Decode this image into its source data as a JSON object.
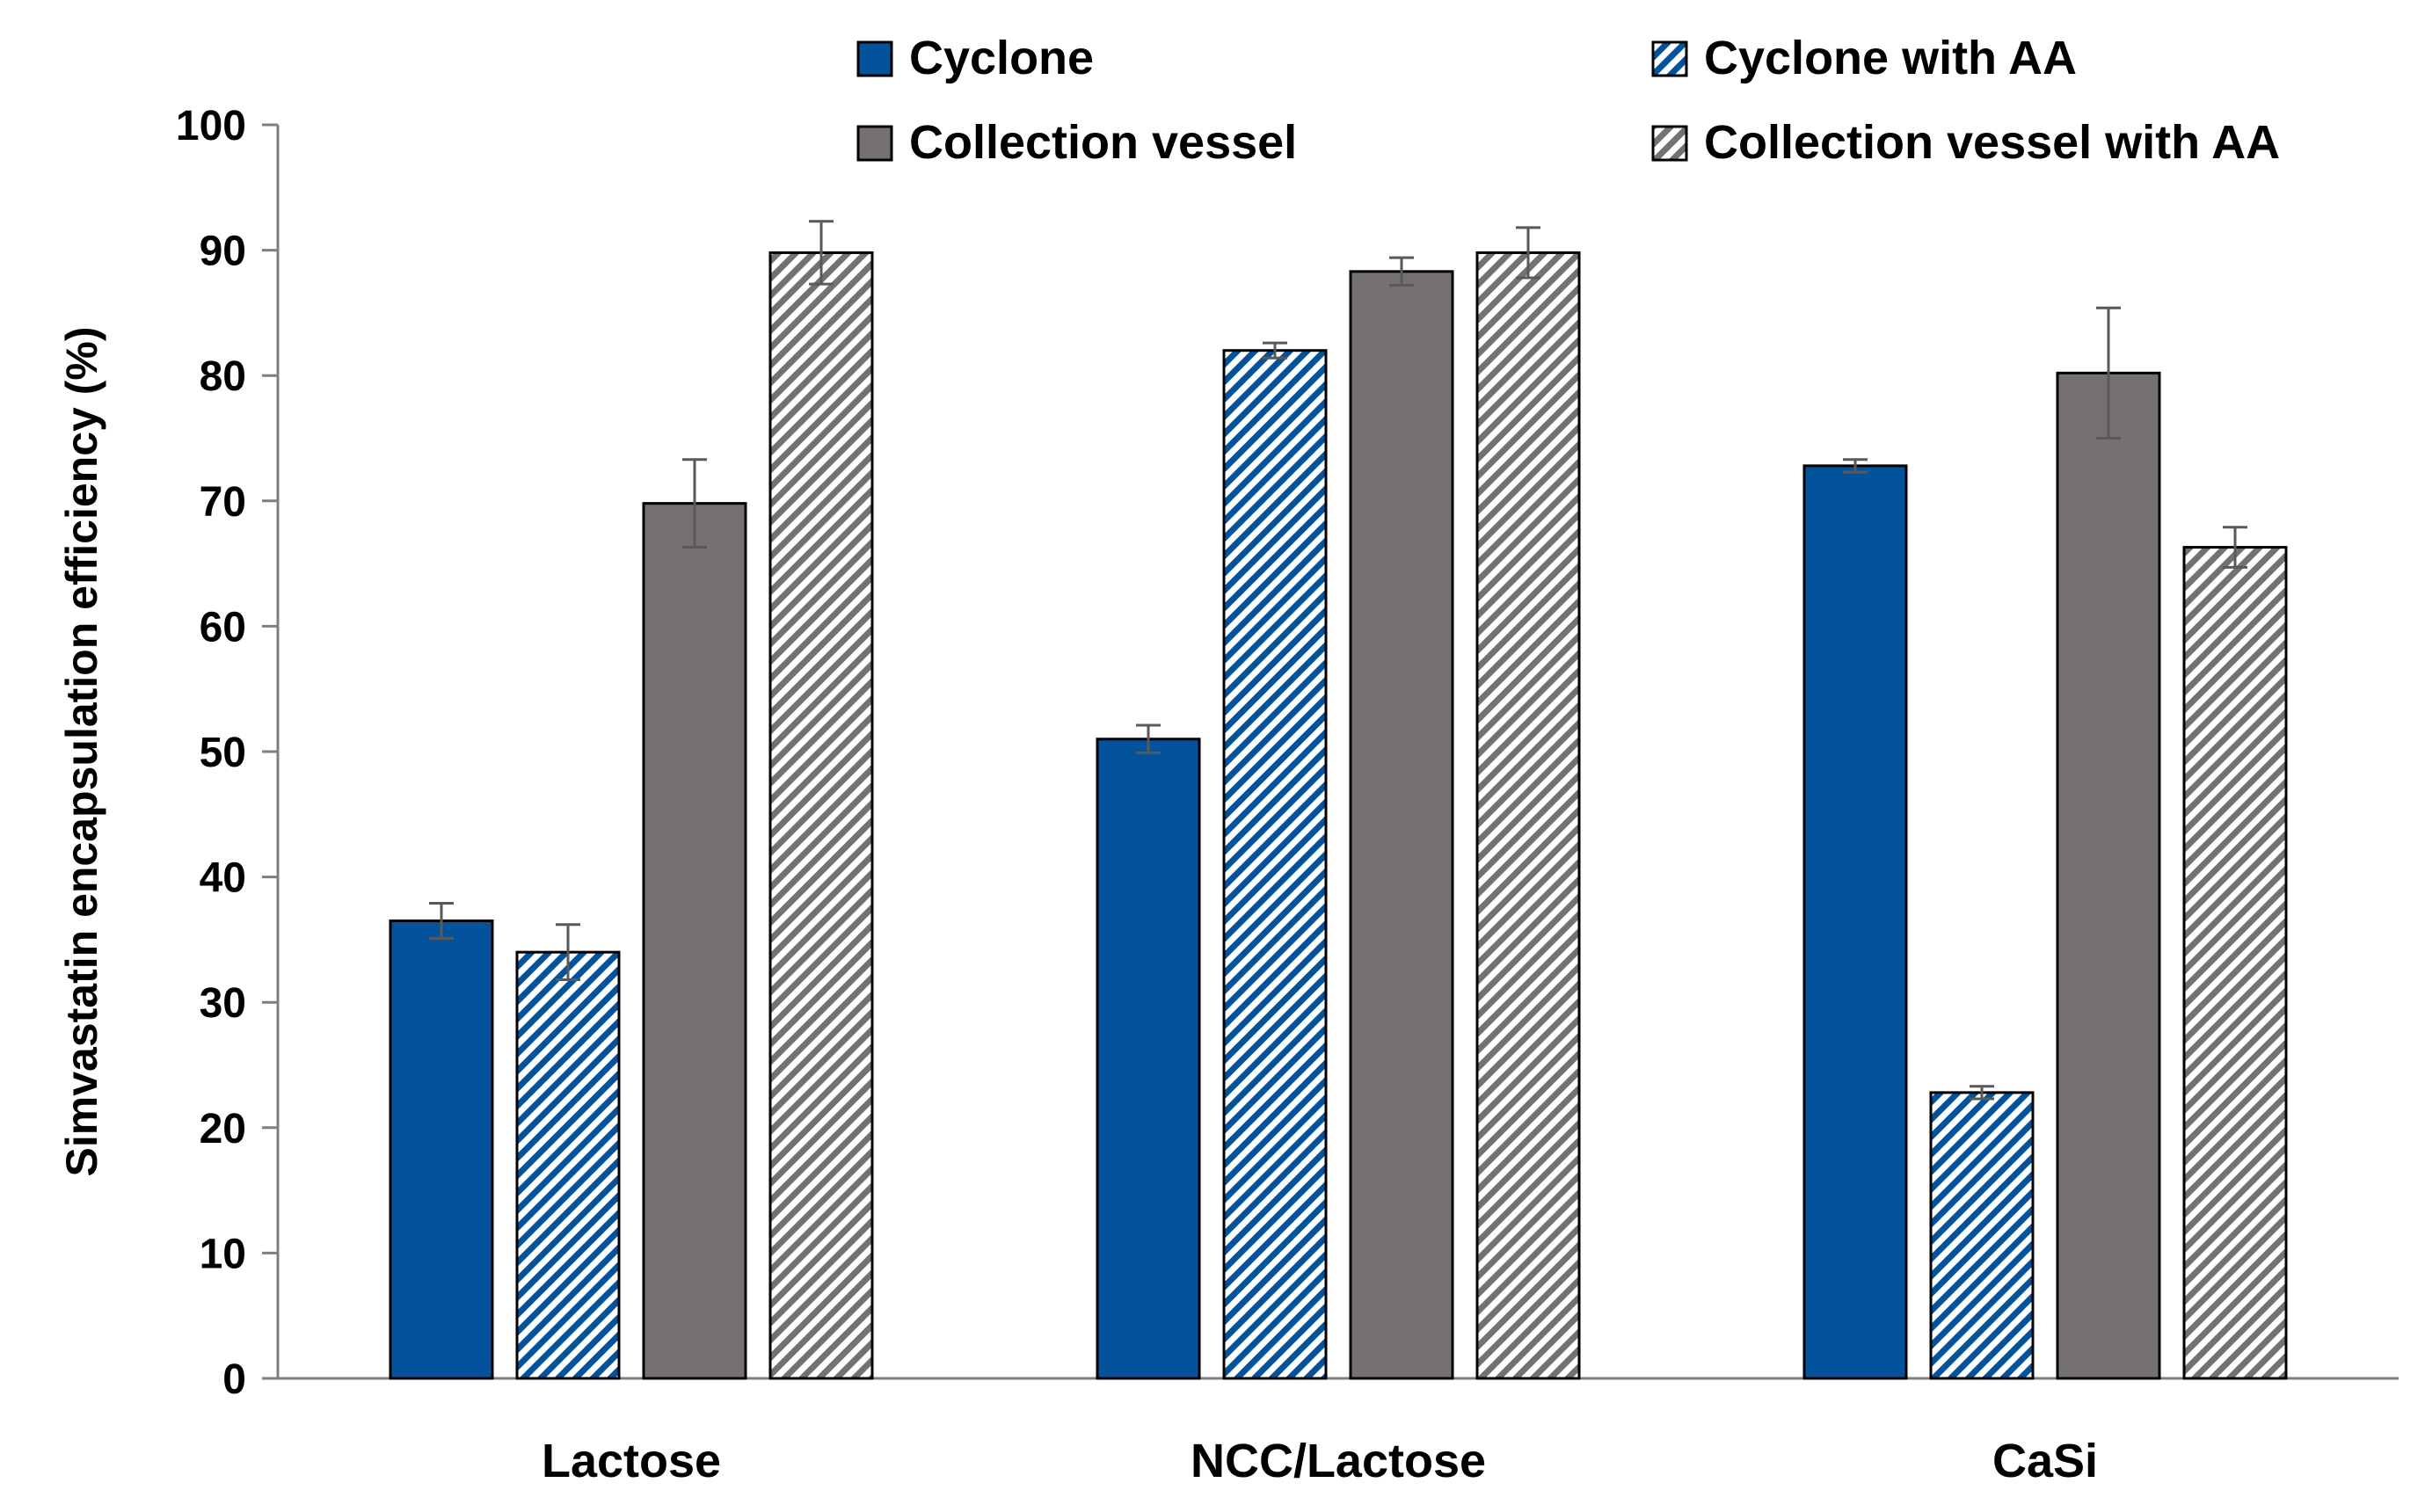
{
  "chart_data": {
    "type": "bar",
    "title": "",
    "xlabel": "",
    "ylabel": "Simvastatin encapsulation efficiency (%)",
    "ylim": [
      0,
      100
    ],
    "yticks": [
      0,
      10,
      20,
      30,
      40,
      50,
      60,
      70,
      80,
      90,
      100
    ],
    "categories": [
      "Lactose",
      "NCC/Lactose",
      "CaSi"
    ],
    "legend_position": "top-right",
    "series": [
      {
        "name": "Cyclone",
        "color": "#03529C",
        "pattern": "solid",
        "values": [
          36.5,
          51.0,
          72.8
        ],
        "errors": [
          1.4,
          1.1,
          0.5
        ]
      },
      {
        "name": "Cyclone with AA",
        "color": "#03529C",
        "pattern": "hatched",
        "values": [
          34.0,
          82.0,
          22.8
        ],
        "errors": [
          2.2,
          0.6,
          0.5
        ]
      },
      {
        "name": "Collection vessel",
        "color": "#767171",
        "pattern": "solid",
        "values": [
          69.8,
          88.3,
          80.2
        ],
        "errors": [
          3.5,
          1.1,
          5.2
        ]
      },
      {
        "name": "Collection vessel with AA",
        "color": "#767171",
        "pattern": "hatched",
        "values": [
          89.8,
          89.8,
          66.3
        ],
        "errors": [
          2.5,
          2.0,
          1.6
        ]
      }
    ]
  }
}
